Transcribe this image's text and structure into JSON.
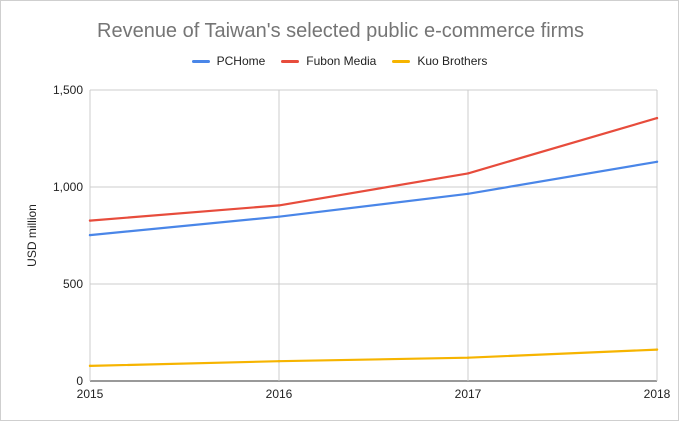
{
  "chart_data": {
    "type": "line",
    "title": "Revenue of Taiwan's selected public e-commerce firms",
    "xlabel": "",
    "ylabel": "USD million",
    "x": [
      "2015",
      "2016",
      "2017",
      "2018"
    ],
    "ylim": [
      0,
      1500
    ],
    "yticks": [
      0,
      500,
      1000,
      1500
    ],
    "ytick_labels": [
      "0",
      "500",
      "1,000",
      "1,500"
    ],
    "grid": true,
    "legend_position": "top-center",
    "series": [
      {
        "name": "PCHome",
        "color": "#4a86e8",
        "values": [
          752,
          847,
          965,
          1130
        ]
      },
      {
        "name": "Fubon Media",
        "color": "#e74c3c",
        "values": [
          827,
          905,
          1070,
          1355
        ]
      },
      {
        "name": "Kuo Brothers",
        "color": "#f6b400",
        "values": [
          78,
          102,
          120,
          162
        ]
      }
    ]
  }
}
